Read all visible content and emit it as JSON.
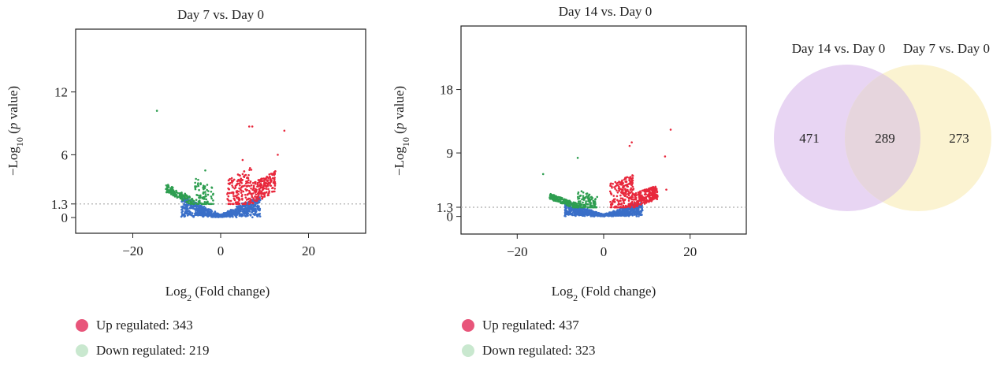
{
  "chart_data": [
    {
      "type": "scatter",
      "subtype": "volcano",
      "title": "Day 7 vs. Day 0",
      "xlabel_main": "Log",
      "xlabel_sub": "2",
      "xlabel_tail": " (Fold change)",
      "ylabel_head": "−Log",
      "ylabel_sub": "10",
      "ylabel_mid": " (",
      "ylabel_italic": "p",
      "ylabel_tail": " value)",
      "xlim": [
        -33,
        33
      ],
      "ylim": [
        -1.5,
        18
      ],
      "xticks": [
        -20,
        0,
        20
      ],
      "xtick_labels": [
        "−20",
        "0",
        "20"
      ],
      "yticks": [
        0,
        1.3,
        6,
        12
      ],
      "ytick_labels": [
        "0",
        "1.3",
        "6",
        "12"
      ],
      "threshold_y": 1.3,
      "outliers": [
        {
          "x": -14.5,
          "y": 10.2,
          "series": "down"
        },
        {
          "x": 6.5,
          "y": 8.7,
          "series": "up"
        },
        {
          "x": 7.2,
          "y": 8.7,
          "series": "up"
        },
        {
          "x": 14.5,
          "y": 8.3,
          "series": "up"
        },
        {
          "x": 13.0,
          "y": 6.0,
          "series": "up"
        },
        {
          "x": 5.0,
          "y": 5.5,
          "series": "up"
        },
        {
          "x": -3.5,
          "y": 4.5,
          "series": "down"
        }
      ],
      "legend": [
        {
          "label": "Up regulated: 343",
          "color": "#e8557a"
        },
        {
          "label": "Down regulated: 219",
          "color": "#c9e8cf"
        }
      ]
    },
    {
      "type": "scatter",
      "subtype": "volcano",
      "title": "Day 14 vs. Day 0",
      "xlabel_main": "Log",
      "xlabel_sub": "2",
      "xlabel_tail": " (Fold change)",
      "ylabel_head": "−Log",
      "ylabel_sub": "10",
      "ylabel_mid": " (",
      "ylabel_italic": "p",
      "ylabel_tail": " value)",
      "xlim": [
        -33,
        33
      ],
      "ylim": [
        -2.5,
        27
      ],
      "xticks": [
        -20,
        0,
        20
      ],
      "xtick_labels": [
        "−20",
        "0",
        "20"
      ],
      "yticks": [
        0,
        1.3,
        9,
        18
      ],
      "ytick_labels": [
        "0",
        "1.3",
        "9",
        "18"
      ],
      "threshold_y": 1.3,
      "outliers": [
        {
          "x": 15.5,
          "y": 12.3,
          "series": "up"
        },
        {
          "x": 6.5,
          "y": 10.5,
          "series": "up"
        },
        {
          "x": 6.0,
          "y": 10.0,
          "series": "up"
        },
        {
          "x": 14.2,
          "y": 8.5,
          "series": "up"
        },
        {
          "x": -6.0,
          "y": 8.3,
          "series": "down"
        },
        {
          "x": -14.0,
          "y": 6.0,
          "series": "down"
        },
        {
          "x": 14.5,
          "y": 3.8,
          "series": "up"
        }
      ],
      "legend": [
        {
          "label": "Up regulated: 437",
          "color": "#e8557a"
        },
        {
          "label": "Down regulated: 323",
          "color": "#c9e8cf"
        }
      ]
    },
    {
      "type": "venn",
      "sets": [
        {
          "label": "Day 14 vs. Day 0",
          "only": "471",
          "color": "#e8d5f3"
        },
        {
          "label": "Day 7 vs. Day 0",
          "only": "273",
          "color": "#fbf3d1"
        }
      ],
      "intersection": "289",
      "intersection_color": "#e9d8de"
    }
  ],
  "colors": {
    "up": "#e8283c",
    "down": "#2e9e50",
    "ns": "#3a6fc8",
    "threshold": "#aaaaaa"
  }
}
